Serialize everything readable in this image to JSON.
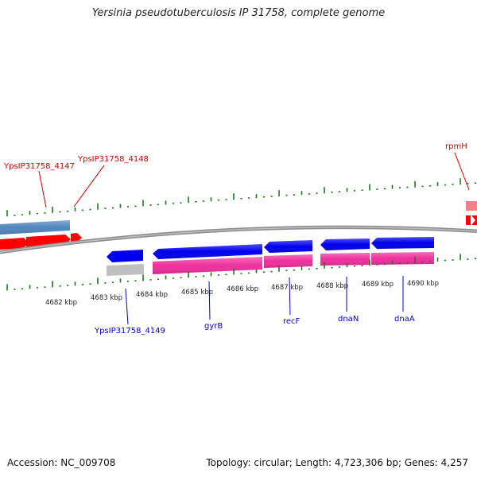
{
  "title": "Yersinia pseudotuberculosis IP 31758, complete genome",
  "footer": {
    "accession": "Accession: NC_009708",
    "summary": "Topology: circular; Length: 4,723,306 bp; Genes: 4,257"
  },
  "colors": {
    "backbone": "#8c8c8c",
    "tick": "#1a7a1a",
    "red_gene": "#ff0000",
    "pink_gene": "#f47f88",
    "steelblue_gene": "#4f86bd",
    "blue_gene": "#0000ee",
    "magenta_gene": "#ee2f9c",
    "gray_gene": "#c0c0c0",
    "red_label": "#cc0000",
    "blue_label": "#0000cc"
  },
  "kbp_labels": [
    "4682 kbp",
    "4683 kbp",
    "4684 kbp",
    "4685 kbp",
    "4686 kbp",
    "4687 kbp",
    "4688 kbp",
    "4689 kbp",
    "4690 kbp"
  ],
  "gene_labels": [
    {
      "text": "YpsIP31758_4147",
      "color": "red_label"
    },
    {
      "text": "YpsIP31758_4148",
      "color": "red_label"
    },
    {
      "text": "rpmH",
      "color": "red_label"
    },
    {
      "text": "YpsIP31758_4149",
      "color": "blue_label"
    },
    {
      "text": "gyrB",
      "color": "blue_label"
    },
    {
      "text": "recF",
      "color": "blue_label"
    },
    {
      "text": "dnaN",
      "color": "blue_label"
    },
    {
      "text": "dnaA",
      "color": "blue_label"
    }
  ]
}
